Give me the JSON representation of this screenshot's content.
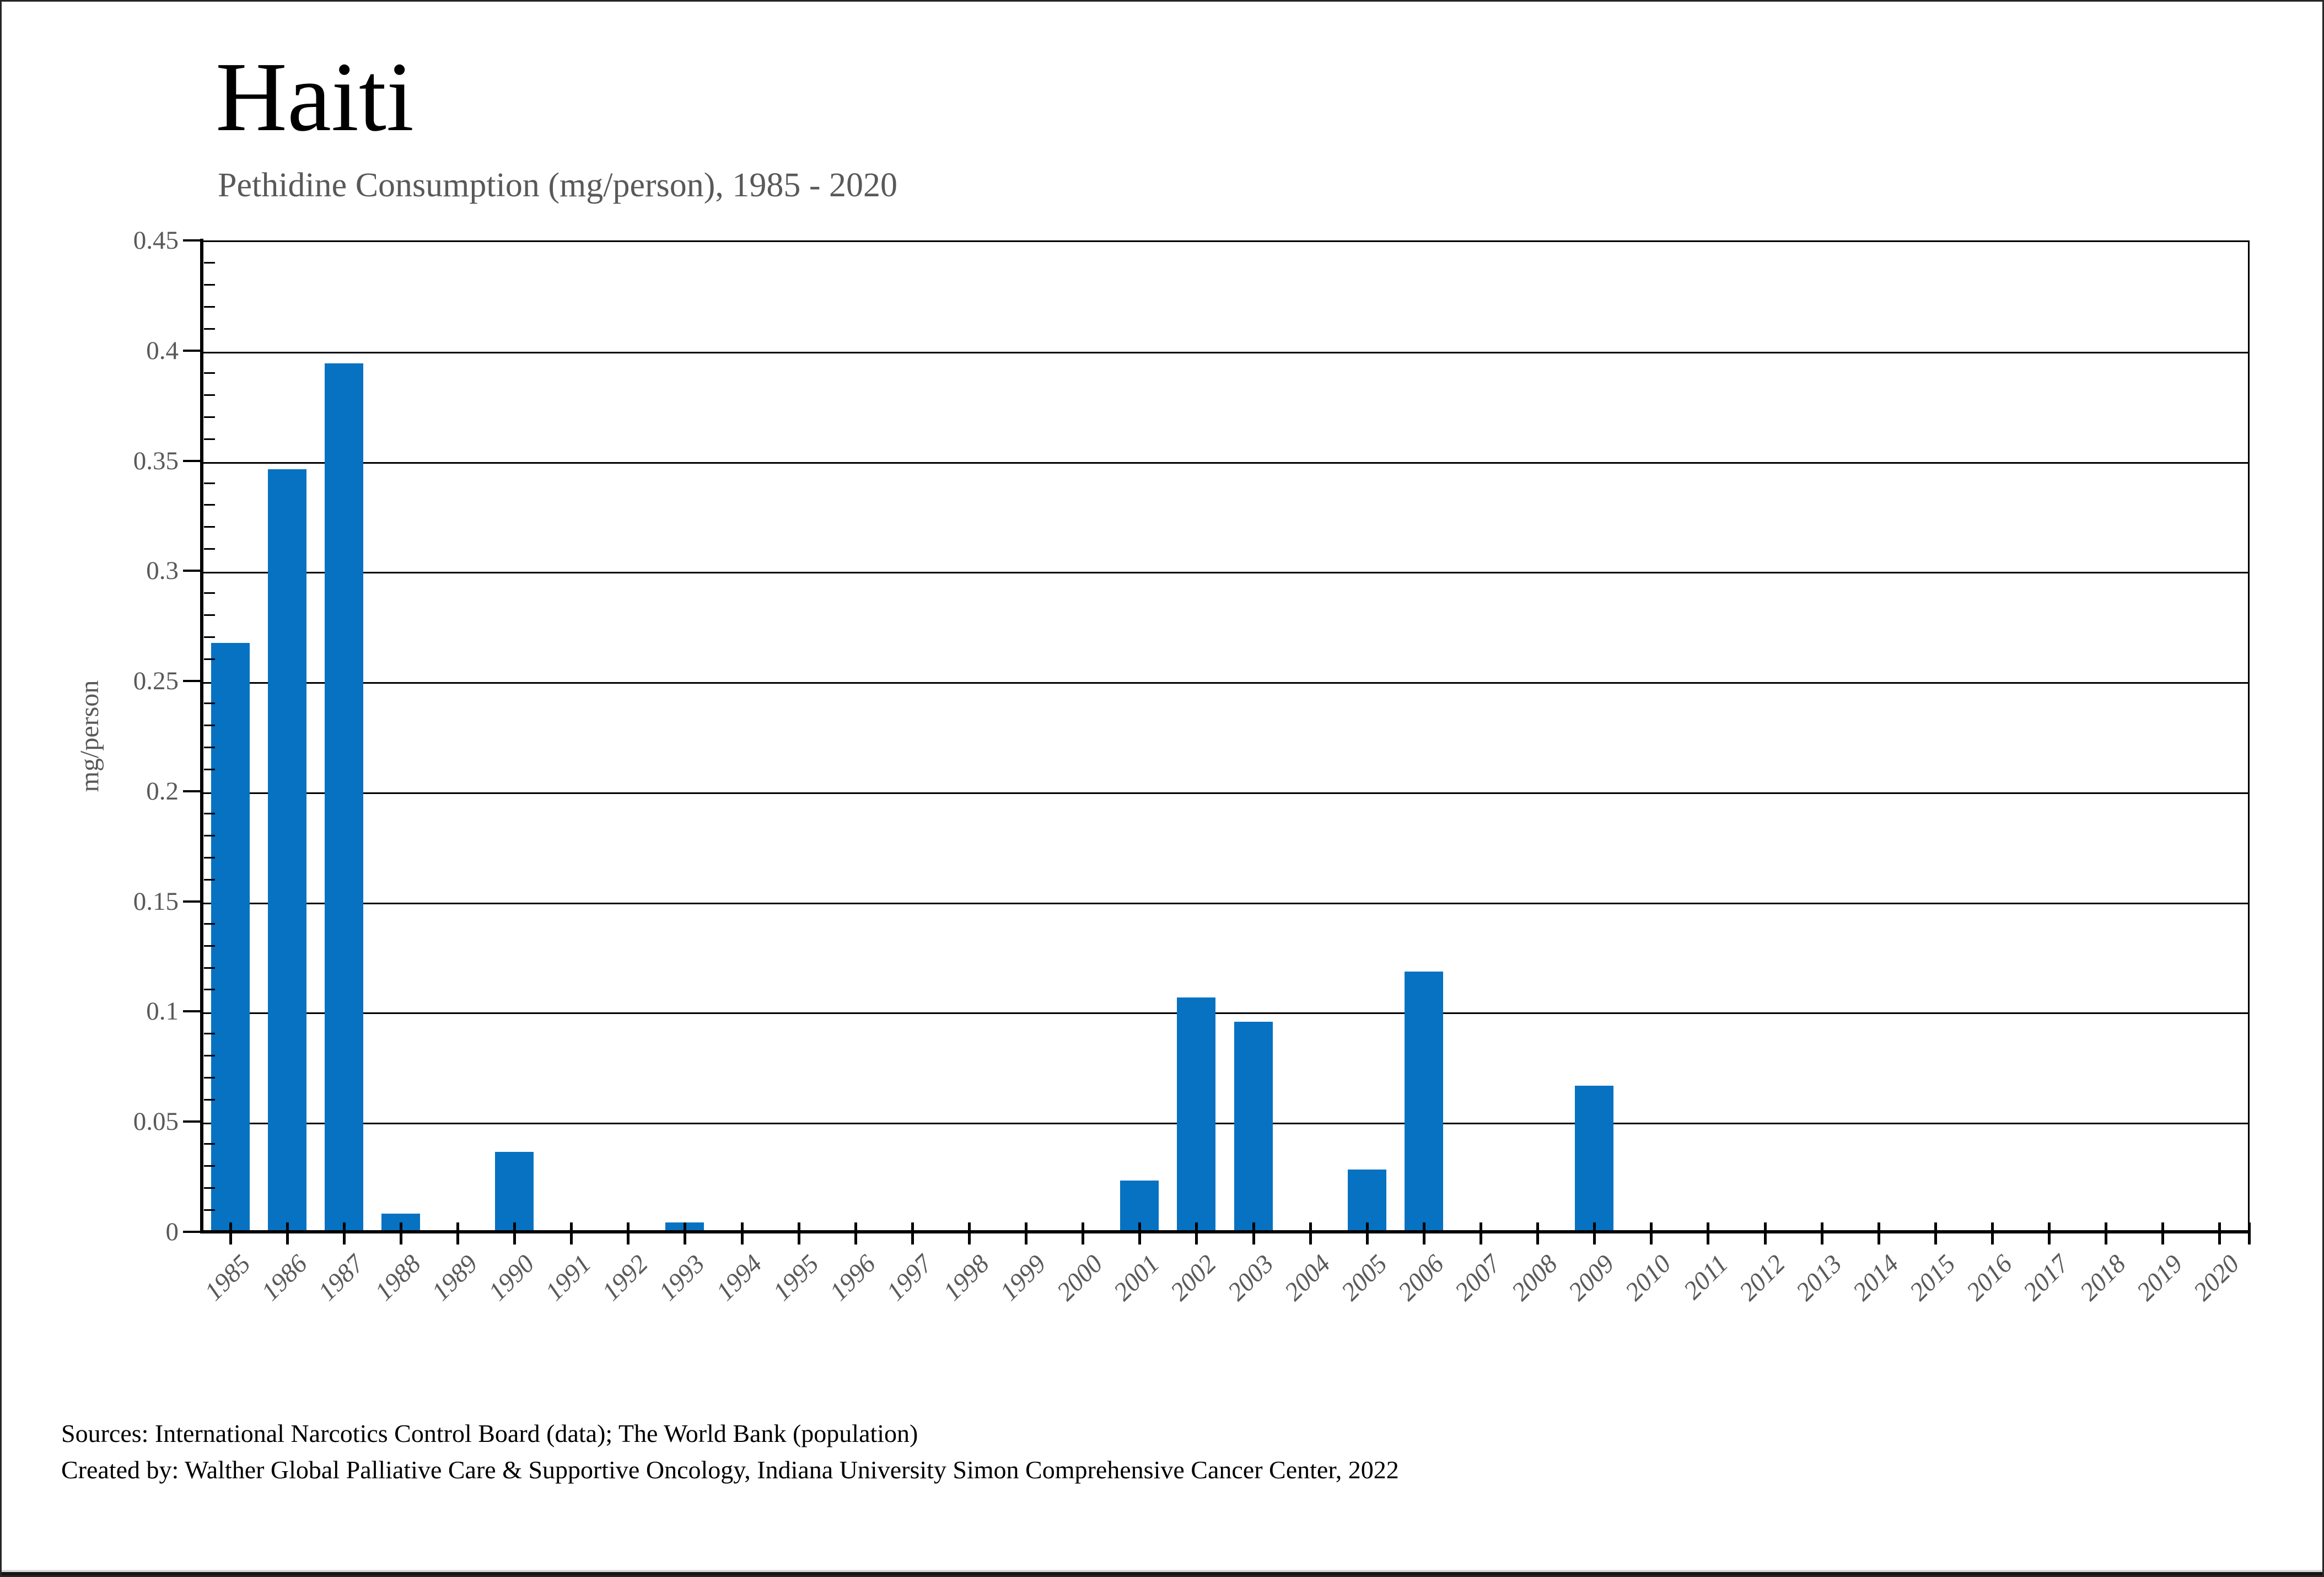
{
  "title": "Haiti",
  "subtitle": "Pethidine Consumption (mg/person), 1985 - 2020",
  "y_axis": {
    "label": "mg/person",
    "tick_labels": [
      "0.45",
      "0.4",
      "0.35",
      "0.3",
      "0.25",
      "0.2",
      "0.15",
      "0.1",
      "0.05",
      "0"
    ],
    "tick_values": [
      0.45,
      0.4,
      0.35,
      0.3,
      0.25,
      0.2,
      0.15,
      0.1,
      0.05,
      0
    ]
  },
  "footer": {
    "line1": "Sources: International Narcotics Control Board (data); The World Bank (population)",
    "line2": "Created by: Walther Global Palliative Care & Supportive Oncology, Indiana University Simon Comprehensive Cancer Center, 2022"
  },
  "colors": {
    "bar": "#0772c2",
    "subtitle_text": "#595959",
    "axis_text": "#595959",
    "gridline": "#000000",
    "footer_text": "#000000",
    "bottom_bar": "#161616",
    "bottom_rule": "#d9d9d9"
  },
  "chart_data": {
    "type": "bar",
    "title": "Pethidine Consumption (mg/person), 1985 - 2020",
    "xlabel": "",
    "ylabel": "mg/person",
    "ylim": [
      0,
      0.45
    ],
    "ytick_step": 0.05,
    "minor_tick_step": 0.01,
    "grid": "horizontal-major",
    "legend": "none",
    "categories": [
      1985,
      1986,
      1987,
      1988,
      1989,
      1990,
      1991,
      1992,
      1993,
      1994,
      1995,
      1996,
      1997,
      1998,
      1999,
      2000,
      2001,
      2002,
      2003,
      2004,
      2005,
      2006,
      2007,
      2008,
      2009,
      2010,
      2011,
      2012,
      2013,
      2014,
      2015,
      2016,
      2017,
      2018,
      2019,
      2020
    ],
    "values": [
      0.268,
      0.347,
      0.395,
      0.009,
      0.001,
      0.037,
      0,
      0,
      0.005,
      0,
      0,
      0,
      0,
      0,
      0,
      0,
      0.024,
      0.107,
      0.096,
      0,
      0.029,
      0.119,
      0,
      0,
      0.067,
      0,
      0,
      0,
      0,
      0,
      0,
      0,
      0,
      0,
      0,
      0
    ]
  }
}
